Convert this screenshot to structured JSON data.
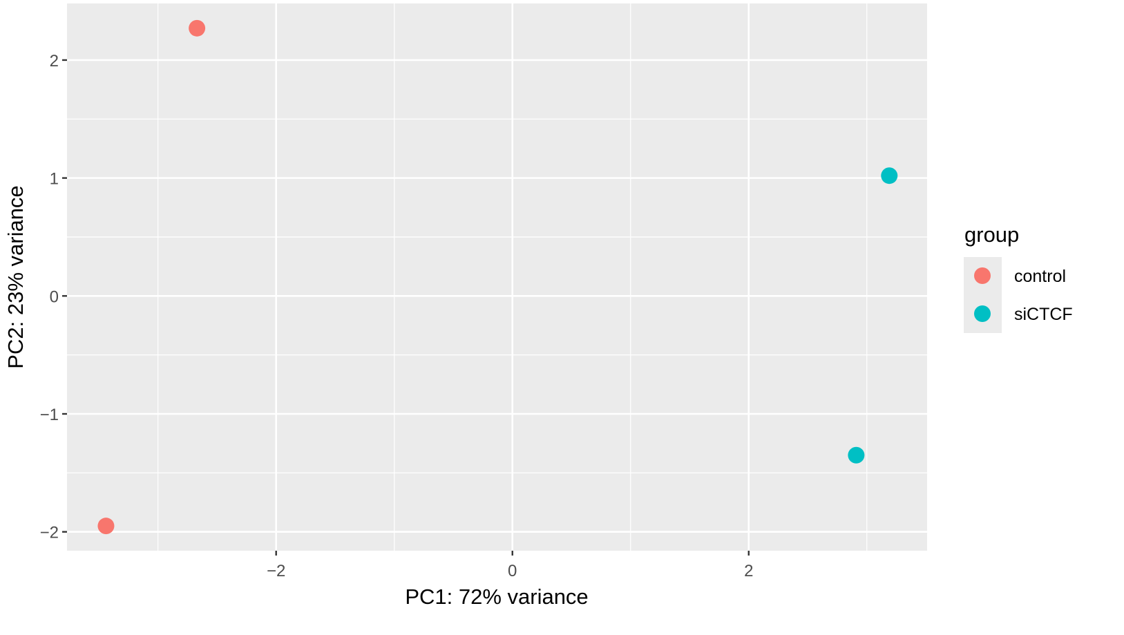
{
  "chart_data": {
    "type": "scatter",
    "title": "",
    "xlabel": "PC1: 72% variance",
    "ylabel": "PC2: 23% variance",
    "xlim": [
      -3.77,
      3.51
    ],
    "ylim": [
      -2.16,
      2.48
    ],
    "x_ticks": [
      -2,
      0,
      2
    ],
    "x_tick_labels": [
      "−2",
      "0",
      "2"
    ],
    "y_ticks": [
      -2,
      -1,
      0,
      1,
      2
    ],
    "y_tick_labels": [
      "−2",
      "−1",
      "0",
      "1",
      "2"
    ],
    "grid": true,
    "background": "#EBEBEB",
    "legend": {
      "title": "group",
      "position": "right",
      "entries": [
        {
          "label": "control",
          "color": "#F8766D"
        },
        {
          "label": "siCTCF",
          "color": "#00BFC4"
        }
      ]
    },
    "series": [
      {
        "name": "control",
        "color": "#F8766D",
        "points": [
          {
            "x": -2.67,
            "y": 2.27
          },
          {
            "x": -3.44,
            "y": -1.95
          }
        ]
      },
      {
        "name": "siCTCF",
        "color": "#00BFC4",
        "points": [
          {
            "x": 3.19,
            "y": 1.02
          },
          {
            "x": 2.91,
            "y": -1.35
          }
        ]
      }
    ]
  }
}
